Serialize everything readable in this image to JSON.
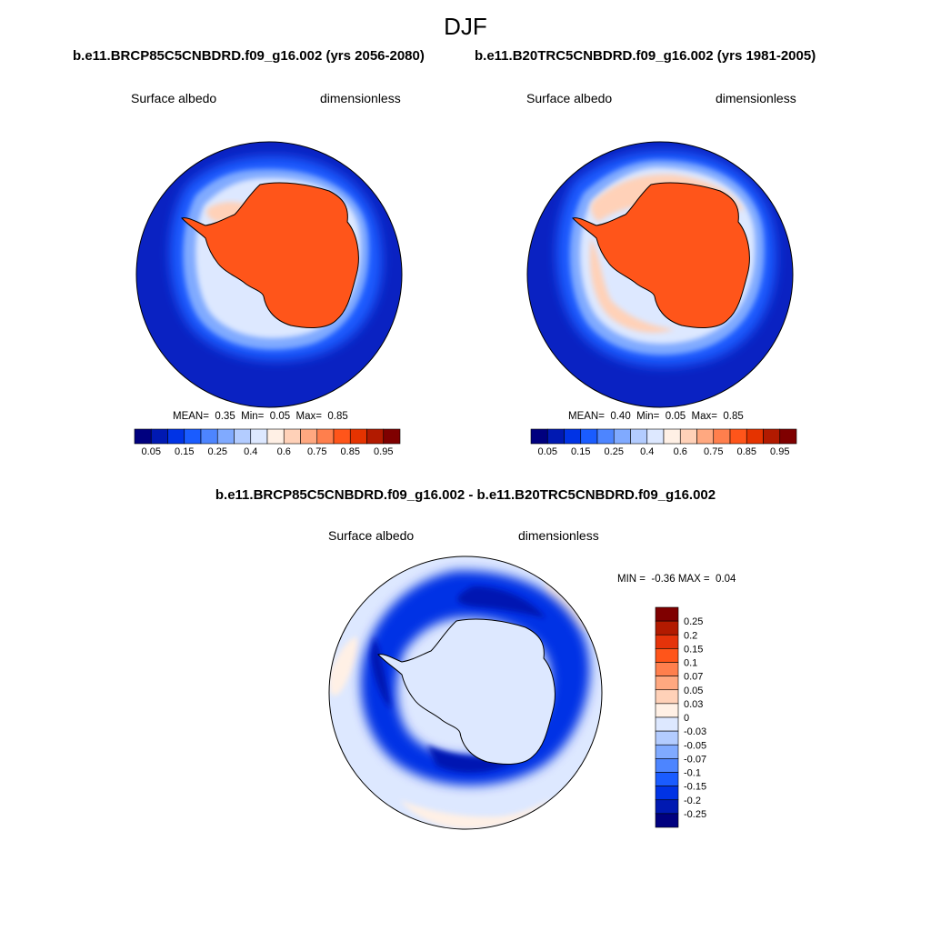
{
  "season": "DJF",
  "left_panel": {
    "case_title": "b.e11.BRCP85C5CNBDRD.f09_g16.002 (yrs 2056-2080)",
    "variable": "Surface albedo",
    "units": "dimensionless",
    "stats": {
      "mean_label": "MEAN=",
      "mean": "0.35",
      "min_label": "Min=",
      "min": "0.05",
      "max_label": "Max=",
      "max": "0.85"
    }
  },
  "right_panel": {
    "case_title": "b.e11.B20TRC5CNBDRD.f09_g16.002 (yrs 1981-2005)",
    "variable": "Surface albedo",
    "units": "dimensionless",
    "stats": {
      "mean_label": "MEAN=",
      "mean": "0.40",
      "min_label": "Min=",
      "min": "0.05",
      "max_label": "Max=",
      "max": "0.85"
    }
  },
  "diff_panel": {
    "title": "b.e11.BRCP85C5CNBDRD.f09_g16.002 - b.e11.B20TRC5CNBDRD.f09_g16.002",
    "variable": "Surface albedo",
    "units": "dimensionless",
    "stats": {
      "min_label": "MIN =",
      "min": "-0.36",
      "max_label": "MAX =",
      "max": "0.04"
    }
  },
  "field_colorbar": {
    "colors": [
      "#00007f",
      "#0019b2",
      "#0033e5",
      "#1a5cff",
      "#4d85ff",
      "#80aaff",
      "#b3ccff",
      "#dde8ff",
      "#fff0e5",
      "#ffd1b8",
      "#ffa880",
      "#ff7f4d",
      "#ff551a",
      "#e53300",
      "#b21a00",
      "#7f0000"
    ],
    "labels": [
      "0.05",
      "0.15",
      "0.25",
      "0.4",
      "0.6",
      "0.75",
      "0.85",
      "0.95"
    ]
  },
  "diff_colorbar": {
    "colors": [
      "#7f0000",
      "#b21a00",
      "#e5330a",
      "#ff551a",
      "#ff7f4d",
      "#ffa880",
      "#ffd1b8",
      "#fff0e5",
      "#dde8ff",
      "#b3ccff",
      "#80aaff",
      "#4d85ff",
      "#1a5cff",
      "#0033e5",
      "#0019b2",
      "#00007f"
    ],
    "labels": [
      "0.25",
      "0.2",
      "0.15",
      "0.1",
      "0.07",
      "0.05",
      "0.03",
      "0",
      "-0.03",
      "-0.05",
      "-0.07",
      "-0.1",
      "-0.15",
      "-0.2",
      "-0.25"
    ]
  },
  "map_colors": {
    "ocean_low": "#0a22c2",
    "ocean_mid": "#1a5cff",
    "ocean_light": "#80aaff",
    "sea_ice": "#dde8ff",
    "ice_edge": "#ffd1b8",
    "land": "#ff551a",
    "diff_bg": "#dde8ff",
    "diff_pos": "#fff0e5",
    "diff_neg1": "#0033e5",
    "diff_neg2": "#0019b2"
  }
}
